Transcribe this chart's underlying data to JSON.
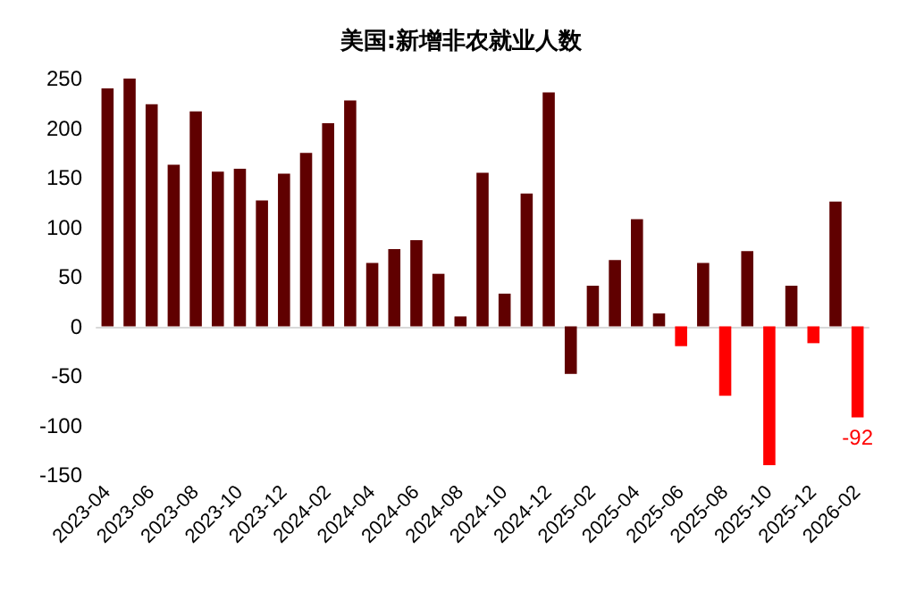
{
  "chart_data": {
    "type": "bar",
    "title": "美国:新增非农就业人数",
    "categories": [
      "2023-04",
      null,
      "2023-06",
      null,
      "2023-08",
      null,
      "2023-10",
      null,
      "2023-12",
      null,
      "2024-02",
      null,
      "2024-04",
      null,
      "2024-06",
      null,
      "2024-08",
      null,
      "2024-10",
      null,
      "2024-12",
      null,
      "2025-02",
      null,
      "2025-04",
      null,
      "2025-06",
      null,
      "2025-08",
      null,
      "2025-10",
      null,
      "2025-12",
      null,
      "2026-02"
    ],
    "values": [
      240,
      250,
      224,
      163,
      217,
      156,
      159,
      127,
      154,
      175,
      205,
      228,
      64,
      78,
      87,
      53,
      10,
      155,
      33,
      134,
      236,
      -48,
      41,
      67,
      108,
      13,
      -20,
      64,
      -70,
      76,
      -140,
      41,
      -17,
      126,
      -92
    ],
    "colors": [
      "#600000",
      "#600000",
      "#600000",
      "#600000",
      "#600000",
      "#600000",
      "#600000",
      "#600000",
      "#600000",
      "#600000",
      "#600000",
      "#600000",
      "#600000",
      "#600000",
      "#600000",
      "#600000",
      "#600000",
      "#600000",
      "#600000",
      "#600000",
      "#600000",
      "#600000",
      "#600000",
      "#600000",
      "#600000",
      "#600000",
      "#ff0000",
      "#600000",
      "#ff0000",
      "#600000",
      "#ff0000",
      "#600000",
      "#ff0000",
      "#600000",
      "#ff0000"
    ],
    "value_labels": [
      null,
      null,
      null,
      null,
      null,
      null,
      null,
      null,
      null,
      null,
      null,
      null,
      null,
      null,
      null,
      null,
      null,
      null,
      null,
      null,
      null,
      null,
      null,
      null,
      null,
      null,
      null,
      null,
      null,
      null,
      null,
      null,
      null,
      null,
      "-92"
    ],
    "ylim": [
      -150,
      250
    ],
    "yticks": [
      -150,
      -100,
      -50,
      0,
      50,
      100,
      150,
      200,
      250
    ]
  }
}
